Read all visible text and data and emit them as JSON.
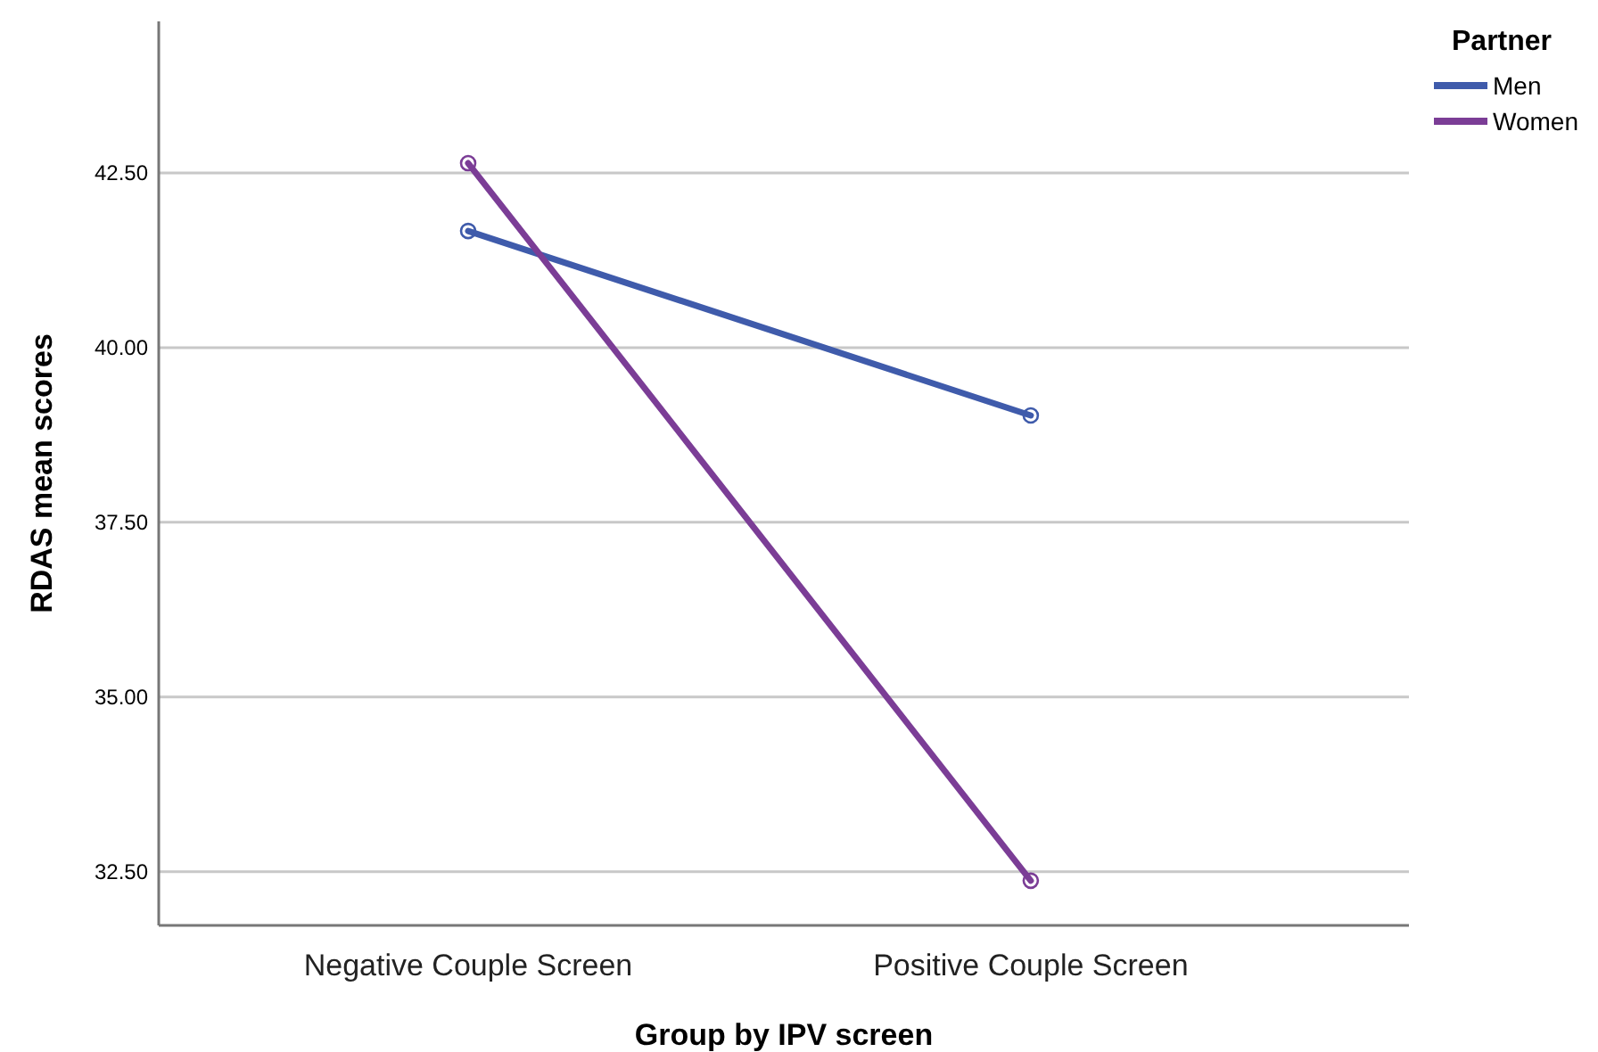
{
  "chart_data": {
    "type": "line",
    "xlabel": "Group by IPV screen",
    "ylabel": "RDAS mean scores",
    "legend_title": "Partner",
    "categories": [
      "Negative Couple Screen",
      "Positive Couple Screen"
    ],
    "series": [
      {
        "name": "Men",
        "color": "#3f5bab",
        "values": [
          41.67,
          39.03
        ]
      },
      {
        "name": "Women",
        "color": "#7b3d96",
        "values": [
          42.64,
          32.37
        ]
      }
    ],
    "ylim": [
      31.73,
      44.67
    ],
    "yticks": [
      {
        "value": 32.5,
        "label": "32.50"
      },
      {
        "value": 35,
        "label": "35.00"
      },
      {
        "value": 37.5,
        "label": "37.50"
      },
      {
        "value": 40,
        "label": "40.00"
      },
      {
        "value": 42.5,
        "label": "42.50"
      }
    ],
    "grid": "y",
    "legend": "top right",
    "marker": "circle",
    "line_style": "solid"
  }
}
